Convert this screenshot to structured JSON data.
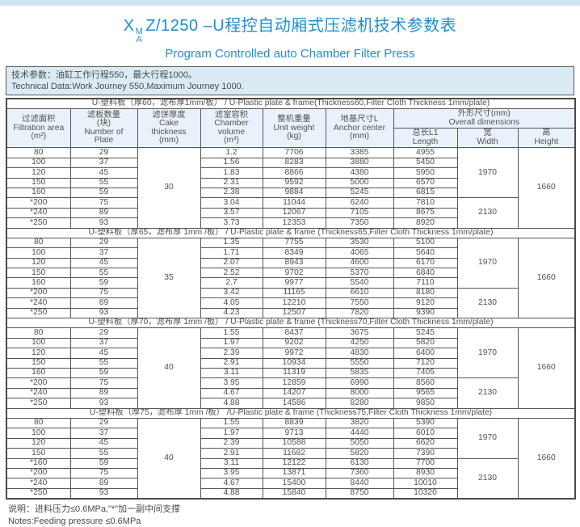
{
  "title": {
    "x": "X",
    "sup": "M",
    "sub": "A",
    "rest": "Z/1250 –U程控自动厢式压滤机技术参数表",
    "subtitle": "Program Controlled auto Chamber Filter Press",
    "accent_color": "#1d8fd1"
  },
  "tech_box": {
    "line_cn": "技术参数：油缸工作行程550，最大行程1000。",
    "line_en": "Technical Data:Work Journey 550,Maximum Journey 1000."
  },
  "table": {
    "columns": [
      {
        "key": "area",
        "lines": [
          "过滤面积",
          "Filtration area",
          "(m²)"
        ]
      },
      {
        "key": "plates",
        "lines": [
          "滤板数量",
          "(块)",
          "Number of",
          "Plate"
        ]
      },
      {
        "key": "cake",
        "lines": [
          "滤饼厚度",
          "Cake",
          "thickness",
          "(mm)"
        ]
      },
      {
        "key": "volume",
        "lines": [
          "滤室容积",
          "Chamber",
          "volume",
          "(m³)"
        ]
      },
      {
        "key": "weight",
        "lines": [
          "整机重量",
          "Unit weight",
          "(kg)"
        ]
      },
      {
        "key": "anchor",
        "lines": [
          "地基尺寸L",
          "Anchor center",
          "(mm)"
        ]
      }
    ],
    "overall": {
      "lines": [
        "外形尺寸(mm)",
        "Overall  dimensions"
      ]
    },
    "sub_columns": [
      {
        "key": "length",
        "lines": [
          "总长L1",
          "Length"
        ]
      },
      {
        "key": "width",
        "lines": [
          "宽",
          "Width"
        ]
      },
      {
        "key": "height",
        "lines": [
          "高",
          "Height"
        ]
      }
    ],
    "sections": [
      {
        "title": "U-塑料板（厚60，滤布厚1mm/板） / U-Plastic plate & frame(Thickness60,Filter Cloth Thickness 1mm/plate)",
        "cake_thickness": "30",
        "height": "1660",
        "width_groups": [
          {
            "value": "1970",
            "span": 5
          },
          {
            "value": "2130",
            "span": 3
          }
        ],
        "rows": [
          [
            "80",
            "29",
            "1.2",
            "7706",
            "3385",
            "4955"
          ],
          [
            "100",
            "37",
            "1.56",
            "8283",
            "3880",
            "5450"
          ],
          [
            "120",
            "45",
            "1.83",
            "8866",
            "4380",
            "5950"
          ],
          [
            "150",
            "55",
            "2.31",
            "9592",
            "5000",
            "6570"
          ],
          [
            "160",
            "59",
            "2.38",
            "9884",
            "5245",
            "6815"
          ],
          [
            "*200",
            "75",
            "3.04",
            "11044",
            "6240",
            "7810"
          ],
          [
            "*240",
            "89",
            "3.57",
            "12067",
            "7105",
            "8675"
          ],
          [
            "*250",
            "93",
            "3.73",
            "12353",
            "7350",
            "8920"
          ]
        ]
      },
      {
        "title": "U-塑料板（厚65，滤布厚 1mm /板） / U-Plastic plate & frame (Thickness65,Filter Cloth Thickness 1mm/plate)",
        "cake_thickness": "35",
        "height": "1660",
        "width_groups": [
          {
            "value": "1970",
            "span": 5
          },
          {
            "value": "2130",
            "span": 3
          }
        ],
        "rows": [
          [
            "80",
            "29",
            "1.35",
            "7755",
            "3530",
            "5100"
          ],
          [
            "100",
            "37",
            "1.71",
            "8349",
            "4065",
            "5640"
          ],
          [
            "120",
            "45",
            "2.07",
            "8943",
            "4600",
            "6170"
          ],
          [
            "150",
            "55",
            "2.52",
            "9702",
            "5370",
            "6840"
          ],
          [
            "160",
            "59",
            "2.7",
            "9977",
            "5540",
            "7110"
          ],
          [
            "*200",
            "75",
            "3.42",
            "11165",
            "6610",
            "8180"
          ],
          [
            "*240",
            "89",
            "4.05",
            "12210",
            "7550",
            "9120"
          ],
          [
            "*250",
            "93",
            "4.23",
            "12507",
            "7820",
            "9390"
          ]
        ]
      },
      {
        "title": "U-塑料板（厚70，滤布厚 1mm /板） / U-Plastic plate & frame (Thickness70,Filter Cloth Thickness 1mm/plate)",
        "cake_thickness": "40",
        "height": "1660",
        "width_groups": [
          {
            "value": "1970",
            "span": 5
          },
          {
            "value": "2130",
            "span": 3
          }
        ],
        "rows": [
          [
            "80",
            "29",
            "1.55",
            "8437",
            "3675",
            "5245"
          ],
          [
            "100",
            "37",
            "1.97",
            "9202",
            "4250",
            "5820"
          ],
          [
            "120",
            "45",
            "2.39",
            "9972",
            "4830",
            "6400"
          ],
          [
            "150",
            "55",
            "2.91",
            "10934",
            "5550",
            "7120"
          ],
          [
            "160",
            "59",
            "3.11",
            "11319",
            "5835",
            "7405"
          ],
          [
            "*200",
            "75",
            "3.95",
            "12859",
            "6990",
            "8560"
          ],
          [
            "*240",
            "89",
            "4.67",
            "14207",
            "8000",
            "9565"
          ],
          [
            "*250",
            "93",
            "4.88",
            "14586",
            "8280",
            "9850"
          ]
        ]
      },
      {
        "title": "U-塑料板（厚75，滤布厚 1mm /板） /U-Plastic plate & frame (Thickness75,Filter Cloth Thickness 1mm/plate)",
        "cake_thickness": "40",
        "height": "1660",
        "width_groups": [
          {
            "value": "1970",
            "span": 4
          },
          {
            "value": "2130",
            "span": 4
          }
        ],
        "rows": [
          [
            "80",
            "29",
            "1.55",
            "8839",
            "3820",
            "5390"
          ],
          [
            "100",
            "37",
            "1.97",
            "9713",
            "4440",
            "6010"
          ],
          [
            "120",
            "45",
            "2.39",
            "10588",
            "5050",
            "6620"
          ],
          [
            "150",
            "55",
            "2.91",
            "11682",
            "5820",
            "7390"
          ],
          [
            "*160",
            "59",
            "3.11",
            "12122",
            "6130",
            "7700"
          ],
          [
            "*200",
            "75",
            "3.95",
            "13871",
            "7360",
            "8930"
          ],
          [
            "*240",
            "89",
            "4.67",
            "15400",
            "8440",
            "10010"
          ],
          [
            "*250",
            "93",
            "4.88",
            "15840",
            "8750",
            "10320"
          ]
        ]
      }
    ]
  },
  "notes": {
    "line_cn": "说明：进料压力≤0.6MPa,\"*\"加一副中间支撑",
    "line_en": "Notes:Feeding pressure ≤0.6MPa"
  }
}
